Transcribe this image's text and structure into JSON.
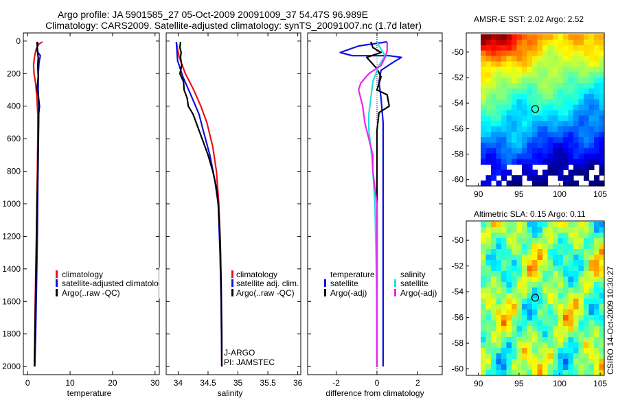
{
  "header": {
    "line1": "Argo profile: JA 5901585_27 05-Oct-2009 20091009_37 54.47S 96.989E",
    "line2": "Climatology: CARS2009. Satellite-adjusted climatology: synTS_20091007.nc (1.7d later)"
  },
  "credit": "CSIRO 14-Oct-2009 10:30:27",
  "colors": {
    "climatology": "#ee1111",
    "satellite": "#1111dd",
    "argo": "#000000",
    "sal_satellite": "#22dddd",
    "sal_argo": "#ee22ee"
  },
  "chart_data": [
    {
      "type": "line",
      "id": "temp",
      "xlabel": "temperature",
      "xlim": [
        -1,
        31
      ],
      "ylim": [
        0,
        2050
      ],
      "xticks": [
        0,
        10,
        20,
        30
      ],
      "yticks": [
        0,
        200,
        400,
        600,
        800,
        1000,
        1200,
        1400,
        1600,
        1800,
        2000
      ],
      "legend": {
        "position": "lower-right",
        "entries": [
          "climatology",
          "satellite-adjusted climatology",
          "Argo(..raw -QC)"
        ]
      },
      "series": [
        {
          "name": "climatology",
          "color": "#ee1111",
          "points": [
            [
              3.5,
              5
            ],
            [
              2.6,
              20
            ],
            [
              2.0,
              50
            ],
            [
              1.6,
              100
            ],
            [
              1.4,
              150
            ],
            [
              1.5,
              200
            ],
            [
              1.9,
              260
            ],
            [
              2.2,
              350
            ],
            [
              2.4,
              450
            ],
            [
              2.4,
              600
            ],
            [
              2.3,
              800
            ],
            [
              2.2,
              1000
            ],
            [
              2.0,
              1300
            ],
            [
              1.8,
              1600
            ],
            [
              1.6,
              2000
            ]
          ]
        },
        {
          "name": "satellite-adjusted climatology",
          "color": "#1111dd",
          "points": [
            [
              2.4,
              5
            ],
            [
              2.3,
              30
            ],
            [
              2.2,
              60
            ],
            [
              3.0,
              90
            ],
            [
              2.7,
              130
            ],
            [
              2.5,
              200
            ],
            [
              2.5,
              300
            ],
            [
              2.6,
              400
            ],
            [
              2.6,
              500
            ],
            [
              2.5,
              700
            ],
            [
              2.4,
              900
            ],
            [
              2.3,
              1200
            ],
            [
              2.1,
              1500
            ],
            [
              1.9,
              1800
            ],
            [
              1.7,
              2000
            ]
          ]
        },
        {
          "name": "Argo(..raw -QC)",
          "color": "#000000",
          "points": [
            [
              2.2,
              5
            ],
            [
              2.3,
              40
            ],
            [
              2.4,
              80
            ],
            [
              2.5,
              100
            ],
            [
              2.4,
              150
            ],
            [
              2.5,
              220
            ],
            [
              2.2,
              300
            ],
            [
              2.5,
              330
            ],
            [
              2.8,
              400
            ],
            [
              2.6,
              450
            ],
            [
              2.5,
              600
            ],
            [
              2.4,
              800
            ],
            [
              2.2,
              1000
            ],
            [
              2.0,
              1400
            ],
            [
              1.8,
              1700
            ],
            [
              1.6,
              2000
            ]
          ]
        }
      ]
    },
    {
      "type": "line",
      "id": "sal",
      "xlabel": "salinity",
      "xlim": [
        33.8,
        36.05
      ],
      "ylim": [
        0,
        2050
      ],
      "xticks": [
        34,
        34.5,
        35,
        35.5,
        36
      ],
      "xticklabels": [
        "34",
        "34.5",
        "35",
        "35.5",
        "36"
      ],
      "yticks": [
        0,
        200,
        400,
        600,
        800,
        1000,
        1200,
        1400,
        1600,
        1800,
        2000
      ],
      "annotations": [
        "J-ARGO",
        "PI: JAMSTEC"
      ],
      "legend": {
        "position": "lower-right",
        "entries": [
          "climatology",
          "satellite adj. clim.",
          "Argo(..raw -QC)"
        ]
      },
      "series": [
        {
          "name": "climatology",
          "color": "#ee1111",
          "points": [
            [
              33.97,
              5
            ],
            [
              33.99,
              50
            ],
            [
              34.02,
              100
            ],
            [
              34.12,
              200
            ],
            [
              34.26,
              300
            ],
            [
              34.38,
              400
            ],
            [
              34.48,
              500
            ],
            [
              34.58,
              650
            ],
            [
              34.64,
              800
            ],
            [
              34.68,
              1000
            ],
            [
              34.71,
              1300
            ],
            [
              34.72,
              1600
            ],
            [
              34.73,
              2000
            ]
          ]
        },
        {
          "name": "satellite adj. clim.",
          "color": "#1111dd",
          "points": [
            [
              33.97,
              5
            ],
            [
              33.98,
              60
            ],
            [
              33.99,
              120
            ],
            [
              34.08,
              220
            ],
            [
              34.2,
              320
            ],
            [
              34.35,
              450
            ],
            [
              34.42,
              550
            ],
            [
              34.53,
              700
            ],
            [
              34.61,
              850
            ],
            [
              34.67,
              1000
            ],
            [
              34.7,
              1300
            ],
            [
              34.72,
              1600
            ],
            [
              34.73,
              2000
            ]
          ]
        },
        {
          "name": "Argo(..raw -QC)",
          "color": "#000000",
          "points": [
            [
              34.04,
              5
            ],
            [
              34.03,
              40
            ],
            [
              34.05,
              70
            ],
            [
              34.04,
              100
            ],
            [
              34.06,
              150
            ],
            [
              34.03,
              200
            ],
            [
              34.09,
              250
            ],
            [
              34.1,
              300
            ],
            [
              34.15,
              350
            ],
            [
              34.17,
              400
            ],
            [
              34.25,
              450
            ],
            [
              34.3,
              500
            ],
            [
              34.4,
              600
            ],
            [
              34.5,
              700
            ],
            [
              34.58,
              800
            ],
            [
              34.64,
              900
            ],
            [
              34.67,
              1000
            ],
            [
              34.7,
              1200
            ],
            [
              34.72,
              1500
            ],
            [
              34.73,
              1800
            ],
            [
              34.73,
              2000
            ]
          ]
        }
      ]
    },
    {
      "type": "line",
      "id": "diff",
      "xlabel": "difference from climatology",
      "xlim": [
        -3.4,
        3.2
      ],
      "ylim": [
        0,
        2050
      ],
      "xticks": [
        -2,
        0,
        2
      ],
      "yticks": [
        0,
        200,
        400,
        600,
        800,
        1000,
        1200,
        1400,
        1600,
        1800,
        2000
      ],
      "zero_line": true,
      "legend": {
        "position": "lower",
        "group_titles": [
          "temperature",
          "salinity"
        ],
        "entries": [
          "satellite",
          "Argo(-adj)",
          "satellite",
          "Argo(-adj)"
        ]
      },
      "series": [
        {
          "name": "temperature satellite",
          "color": "#1111dd",
          "points": [
            [
              0.5,
              5
            ],
            [
              -0.9,
              30
            ],
            [
              -1.8,
              70
            ],
            [
              -1.2,
              90
            ],
            [
              0.6,
              90
            ],
            [
              1.2,
              100
            ],
            [
              0.8,
              130
            ],
            [
              0.2,
              180
            ],
            [
              0.1,
              250
            ],
            [
              0.2,
              350
            ],
            [
              0.3,
              500
            ],
            [
              0.3,
              800
            ],
            [
              0.3,
              1200
            ],
            [
              0.3,
              1600
            ],
            [
              0.3,
              2000
            ]
          ]
        },
        {
          "name": "temperature Argo(-adj)",
          "color": "#000000",
          "points": [
            [
              -0.3,
              5
            ],
            [
              -0.2,
              40
            ],
            [
              0.2,
              70
            ],
            [
              -0.5,
              100
            ],
            [
              0.0,
              170
            ],
            [
              0.2,
              220
            ],
            [
              0.0,
              300
            ],
            [
              0.5,
              330
            ],
            [
              0.6,
              400
            ],
            [
              0.1,
              440
            ],
            [
              0.0,
              550
            ],
            [
              0.0,
              800
            ],
            [
              0.0,
              1200
            ],
            [
              0.0,
              1600
            ],
            [
              0.0,
              2000
            ]
          ]
        },
        {
          "name": "salinity satellite",
          "color": "#22dddd",
          "points": [
            [
              0.0,
              5
            ],
            [
              0.2,
              50
            ],
            [
              0.4,
              90
            ],
            [
              0.1,
              150
            ],
            [
              -0.2,
              250
            ],
            [
              -0.3,
              350
            ],
            [
              -0.4,
              450
            ],
            [
              -0.4,
              550
            ],
            [
              -0.3,
              650
            ],
            [
              -0.2,
              800
            ],
            [
              -0.1,
              1000
            ],
            [
              -0.05,
              1300
            ],
            [
              0.0,
              1700
            ],
            [
              0.0,
              2000
            ]
          ]
        },
        {
          "name": "salinity Argo(-adj)",
          "color": "#ee22ee",
          "points": [
            [
              0.5,
              5
            ],
            [
              0.5,
              60
            ],
            [
              0.4,
              100
            ],
            [
              0.2,
              150
            ],
            [
              -0.4,
              200
            ],
            [
              -0.8,
              260
            ],
            [
              -0.9,
              300
            ],
            [
              -0.7,
              400
            ],
            [
              -0.6,
              500
            ],
            [
              -0.4,
              600
            ],
            [
              -0.2,
              700
            ],
            [
              -0.2,
              800
            ],
            [
              -0.1,
              900
            ],
            [
              0.0,
              1000
            ],
            [
              0.0,
              1300
            ],
            [
              0.0,
              2000
            ]
          ]
        }
      ]
    },
    {
      "type": "heatmap",
      "id": "sst",
      "title": "AMSR-E SST: 2.02  Argo: 2.52",
      "xlim": [
        88.5,
        105.5
      ],
      "ylim": [
        -60.5,
        -48.5
      ],
      "xticks": [
        90,
        95,
        100,
        105
      ],
      "yticks": [
        -50,
        -52,
        -54,
        -56,
        -58,
        -60
      ],
      "marker": {
        "lon": 96.989,
        "lat": -54.47
      }
    },
    {
      "type": "heatmap",
      "id": "sla",
      "title": "Altimetric SLA: 0.15  Argo: 0.11",
      "xlim": [
        88.5,
        105.5
      ],
      "ylim": [
        -60.5,
        -48.5
      ],
      "xticks": [
        90,
        95,
        100,
        105
      ],
      "yticks": [
        -50,
        -52,
        -54,
        -56,
        -58,
        -60
      ],
      "marker": {
        "lon": 96.989,
        "lat": -54.47
      }
    }
  ]
}
